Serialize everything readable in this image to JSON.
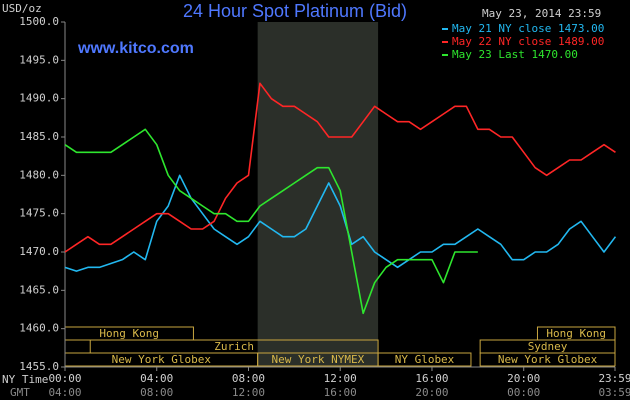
{
  "chart_data": {
    "type": "line",
    "title": "24 Hour Spot Platinum (Bid)",
    "watermark": "www.kitco.com",
    "timestamp": "May 23, 2014 23:59",
    "y_label": "USD/oz",
    "x_label": "NY Time",
    "x2_label": "GMT",
    "x": [
      0,
      0.5,
      1,
      1.5,
      2,
      2.5,
      3,
      3.5,
      4,
      4.5,
      5,
      5.5,
      6,
      6.5,
      7,
      7.5,
      8,
      8.5,
      9,
      9.5,
      10,
      10.5,
      11,
      11.5,
      12,
      12.5,
      13,
      13.5,
      14,
      14.5,
      15,
      15.5,
      16,
      16.5,
      17,
      17.5,
      18,
      18.5,
      19,
      19.5,
      20,
      20.5,
      21,
      21.5,
      22,
      22.5,
      23,
      23.5,
      24
    ],
    "series": [
      {
        "name": "May 21 NY close 1473.00",
        "color": "#22b8f0",
        "values": [
          1468,
          1467.5,
          1468,
          1468,
          1468.5,
          1469,
          1470,
          1469,
          1474,
          1476,
          1480,
          1477,
          1475,
          1473,
          1472,
          1471,
          1472,
          1474,
          1473,
          1472,
          1472,
          1473,
          1476,
          1479,
          1476,
          1471,
          1472,
          1470,
          1469,
          1468,
          1469,
          1470,
          1470,
          1471,
          1471,
          1472,
          1473,
          1472,
          1471,
          1469,
          1469,
          1470,
          1470,
          1471,
          1473,
          1474,
          1472,
          1470,
          1472
        ]
      },
      {
        "name": "May 22 NY close 1489.00",
        "color": "#ff2626",
        "values": [
          1470,
          1471,
          1472,
          1471,
          1471,
          1472,
          1473,
          1474,
          1475,
          1475,
          1474,
          1473,
          1473,
          1474,
          1477,
          1479,
          1480,
          1492,
          1490,
          1489,
          1489,
          1488,
          1487,
          1485,
          1485,
          1485,
          1487,
          1489,
          1488,
          1487,
          1487,
          1486,
          1487,
          1488,
          1489,
          1489,
          1486,
          1486,
          1485,
          1485,
          1483,
          1481,
          1480,
          1481,
          1482,
          1482,
          1483,
          1484,
          1483
        ]
      },
      {
        "name": "May 23 Last 1470.00",
        "color": "#2ee62e",
        "values": [
          1484,
          1483,
          1483,
          1483,
          1483,
          1484,
          1485,
          1486,
          1484,
          1480,
          1478,
          1477,
          1476,
          1475,
          1475,
          1474,
          1474,
          1476,
          1477,
          1478,
          1479,
          1480,
          1481,
          1481,
          1478,
          1470,
          1462,
          1466,
          1468,
          1469,
          1469,
          1469,
          1469,
          1466,
          1470,
          1470,
          1470,
          null,
          null,
          null,
          null,
          null,
          null,
          null,
          null,
          null,
          null,
          null,
          null
        ]
      }
    ],
    "xlim": [
      0,
      23.98
    ],
    "xticks": [
      {
        "value": 0,
        "label": "00:00"
      },
      {
        "value": 4,
        "label": "04:00"
      },
      {
        "value": 8,
        "label": "08:00"
      },
      {
        "value": 12,
        "label": "12:00"
      },
      {
        "value": 16,
        "label": "16:00"
      },
      {
        "value": 20,
        "label": "20:00"
      },
      {
        "value": 23.98,
        "label": "23:59"
      }
    ],
    "x2lim": [
      4,
      27.98
    ],
    "x2ticks": [
      {
        "value": 4,
        "label": "04:00"
      },
      {
        "value": 8,
        "label": "08:00"
      },
      {
        "value": 12,
        "label": "12:00"
      },
      {
        "value": 16,
        "label": "16:00"
      },
      {
        "value": 20,
        "label": "20:00"
      },
      {
        "value": 24,
        "label": "00:00"
      },
      {
        "value": 27.98,
        "label": "03:59"
      }
    ],
    "ylim": [
      1455,
      1500
    ],
    "yticks": [
      {
        "value": 1455,
        "label": "1455.0"
      },
      {
        "value": 1460,
        "label": "1460.0"
      },
      {
        "value": 1465,
        "label": "1465.0"
      },
      {
        "value": 1470,
        "label": "1470.0"
      },
      {
        "value": 1475,
        "label": "1475.0"
      },
      {
        "value": 1480,
        "label": "1480.0"
      },
      {
        "value": 1485,
        "label": "1485.0"
      },
      {
        "value": 1490,
        "label": "1490.0"
      },
      {
        "value": 1495,
        "label": "1495.0"
      },
      {
        "value": 1500,
        "label": "1500.0"
      }
    ],
    "highlight_x": [
      8.4,
      13.65
    ],
    "highlight_color": "#2b2f29",
    "sessions": [
      [
        {
          "name": "Hong Kong",
          "start": 0,
          "end": 5.6
        },
        {
          "name": "Hong Kong",
          "start": 20.6,
          "end": 23.98
        }
      ],
      [
        {
          "name": "Zurich",
          "start": 1.1,
          "end": 13.65
        },
        {
          "name": "Sydney",
          "start": 18.1,
          "end": 23.98
        }
      ],
      [
        {
          "name": "New York Globex",
          "start": 0,
          "end": 8.4
        },
        {
          "name": "New York NYMEX",
          "start": 8.4,
          "end": 13.65
        },
        {
          "name": "NY Globex",
          "start": 13.65,
          "end": 17.7
        },
        {
          "name": "New York Globex",
          "start": 18.1,
          "end": 23.98
        }
      ]
    ]
  }
}
